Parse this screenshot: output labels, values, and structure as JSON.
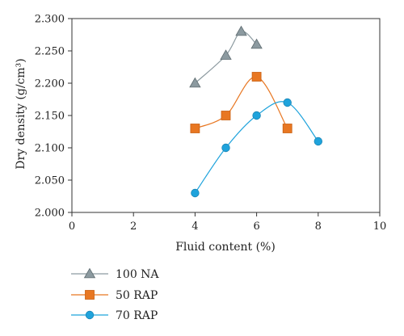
{
  "chart_data": {
    "type": "scatter",
    "xlabel": "Fluid content (%)",
    "ylabel": "Dry density (g/cm³)",
    "xlim": [
      0,
      10
    ],
    "ylim": [
      2.0,
      2.3
    ],
    "x_ticks": [
      0,
      2,
      4,
      6,
      8,
      10
    ],
    "x_tick_labels": [
      "0",
      "2",
      "4",
      "6",
      "8",
      "10"
    ],
    "y_ticks": [
      2.0,
      2.05,
      2.1,
      2.15,
      2.2,
      2.25,
      2.3
    ],
    "y_tick_labels": [
      "2.000",
      "2.050",
      "2.100",
      "2.150",
      "2.200",
      "2.250",
      "2.300"
    ],
    "grid": false,
    "legend_position": "bottom-left",
    "series": [
      {
        "name": "100 NA",
        "marker": "triangle",
        "color": "#8c9aa0",
        "marker_edge": "#5e6b70",
        "x": [
          4,
          5,
          5.5,
          6
        ],
        "y": [
          2.2,
          2.243,
          2.28,
          2.26
        ]
      },
      {
        "name": "50 RAP",
        "marker": "square",
        "color": "#e87722",
        "marker_edge": "#c95f12",
        "x": [
          4,
          5,
          6,
          7
        ],
        "y": [
          2.13,
          2.15,
          2.21,
          2.13
        ]
      },
      {
        "name": "70 RAP",
        "marker": "circle",
        "color": "#1fa3dc",
        "marker_edge": "#1b86b6",
        "x": [
          4,
          5,
          6,
          7,
          8
        ],
        "y": [
          2.03,
          2.1,
          2.15,
          2.17,
          2.11
        ]
      }
    ]
  }
}
